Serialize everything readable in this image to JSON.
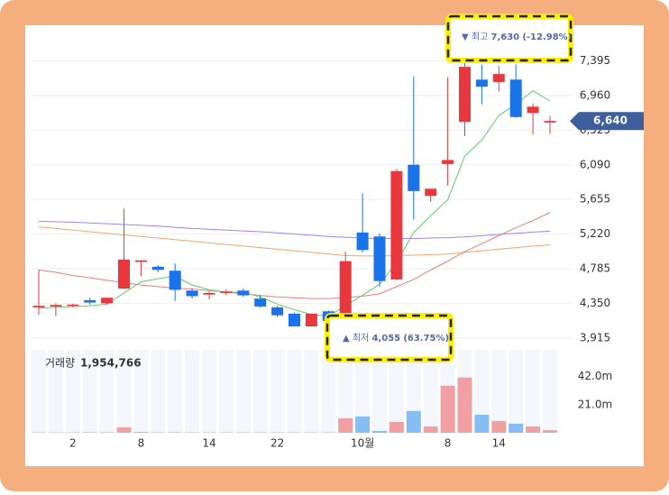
{
  "chart_data": {
    "type": "candlestick",
    "categories": [
      null,
      null,
      "2",
      null,
      null,
      null,
      "8",
      null,
      null,
      null,
      "14",
      null,
      null,
      null,
      "22",
      null,
      null,
      null,
      null,
      "10월",
      null,
      null,
      null,
      null,
      "8",
      null,
      null,
      "14",
      null,
      null,
      null
    ],
    "open": [
      4300,
      4310,
      4320,
      4390,
      4350,
      4535,
      4870,
      4810,
      4760,
      4510,
      4460,
      4480,
      4510,
      4410,
      4300,
      4220,
      4060,
      4250,
      4120,
      5240,
      5190,
      4650,
      6090,
      5700,
      6100,
      6630,
      7160,
      7130,
      7160,
      6740,
      6620
    ],
    "high": [
      4771,
      4350,
      4345,
      4420,
      4420,
      5540,
      4890,
      4830,
      4850,
      4540,
      4500,
      4530,
      4540,
      4450,
      4320,
      4230,
      4220,
      4260,
      5000,
      5730,
      5230,
      6040,
      7200,
      5790,
      7190,
      7630,
      7350,
      7330,
      7350,
      6860,
      6700
    ],
    "low": [
      4208,
      4190,
      4300,
      4330,
      4330,
      4530,
      4690,
      4740,
      4380,
      4410,
      4400,
      4450,
      4430,
      4290,
      4180,
      4060,
      4055,
      4130,
      4055,
      4990,
      4560,
      4640,
      5400,
      5620,
      5830,
      6450,
      6850,
      7010,
      6680,
      6470,
      6480
    ],
    "close": [
      4320,
      4330,
      4335,
      4360,
      4420,
      4900,
      4890,
      4770,
      4520,
      4440,
      4480,
      4500,
      4450,
      4310,
      4200,
      4060,
      4220,
      4130,
      4880,
      5020,
      4630,
      6010,
      5760,
      5790,
      6150,
      7320,
      7070,
      7230,
      6690,
      6820,
      6640
    ],
    "up_color": "#e8383d",
    "down_color": "#1a73e8",
    "ylim": [
      3800,
      7820
    ],
    "yticks": [
      {
        "value": 3915,
        "label": "3,915"
      },
      {
        "value": 4350,
        "label": "4,350"
      },
      {
        "value": 4785,
        "label": "4,785"
      },
      {
        "value": 5220,
        "label": "5,220"
      },
      {
        "value": 5655,
        "label": "5,655"
      },
      {
        "value": 6090,
        "label": "6,090"
      },
      {
        "value": 6525,
        "label": "6,525"
      },
      {
        "value": 6960,
        "label": "6,960"
      },
      {
        "value": 7395,
        "label": "7,395"
      }
    ],
    "grid": true,
    "series": [
      {
        "color": "#a77df0",
        "values": [
          5380,
          5375,
          5370,
          5360,
          5350,
          5340,
          5330,
          5320,
          5305,
          5290,
          5280,
          5270,
          5260,
          5250,
          5235,
          5220,
          5205,
          5190,
          5180,
          5170,
          5165,
          5165,
          5165,
          5170,
          5175,
          5185,
          5200,
          5215,
          5230,
          5245,
          5255
        ]
      },
      {
        "color": "#f2a36b",
        "values": [
          5310,
          5290,
          5270,
          5250,
          5230,
          5210,
          5190,
          5170,
          5150,
          5130,
          5110,
          5090,
          5070,
          5050,
          5030,
          5010,
          4990,
          4970,
          4950,
          4945,
          4945,
          4950,
          4955,
          4960,
          4970,
          4990,
          5010,
          5030,
          5050,
          5070,
          5085
        ]
      },
      {
        "color": "#ee7b7b",
        "values": [
          4770,
          4740,
          4700,
          4670,
          4640,
          4610,
          4580,
          4560,
          4540,
          4530,
          4510,
          4490,
          4470,
          4450,
          4430,
          4420,
          4410,
          4410,
          4420,
          4440,
          4470,
          4560,
          4650,
          4770,
          4880,
          5000,
          5100,
          5200,
          5300,
          5390,
          5490
        ]
      },
      {
        "color": "#5fcc6a",
        "values": [
          4290,
          4300,
          4310,
          4320,
          4340,
          4480,
          4620,
          4660,
          4690,
          4580,
          4520,
          4490,
          4490,
          4430,
          4340,
          4270,
          4210,
          4190,
          4320,
          4450,
          4590,
          4860,
          5240,
          5450,
          5650,
          6200,
          6400,
          6710,
          6850,
          7020,
          6890
        ]
      }
    ],
    "current_price": {
      "value": 6640,
      "label": "6,640"
    },
    "current_price_color": "#3f5e9e",
    "high_annotation": {
      "arrow": "▼",
      "label": "최고",
      "value": "7,630",
      "change": "(-12.98%)"
    },
    "low_annotation": {
      "arrow": "▲",
      "label": "최저",
      "value": "4,055",
      "change": "(63.75%)"
    },
    "volume": {
      "title": "거래량",
      "current": "1,954,766",
      "values": [
        0.3,
        0.3,
        0.3,
        0.4,
        0.4,
        4,
        0.6,
        0.3,
        0.4,
        0.3,
        0.3,
        0.3,
        0.3,
        0.3,
        0.3,
        0.3,
        0.3,
        0.3,
        10.8,
        12.2,
        1.4,
        8.1,
        16.3,
        4.7,
        35.2,
        41.3,
        13.5,
        8.8,
        6.8,
        4.7,
        1.95
      ],
      "up_color": "#f0a0a2",
      "down_color": "#86bdf3",
      "ylim": [
        0,
        62
      ],
      "yticks": [
        {
          "value": 21,
          "label": "21.0m"
        },
        {
          "value": 42,
          "label": "42.0m"
        }
      ]
    }
  }
}
